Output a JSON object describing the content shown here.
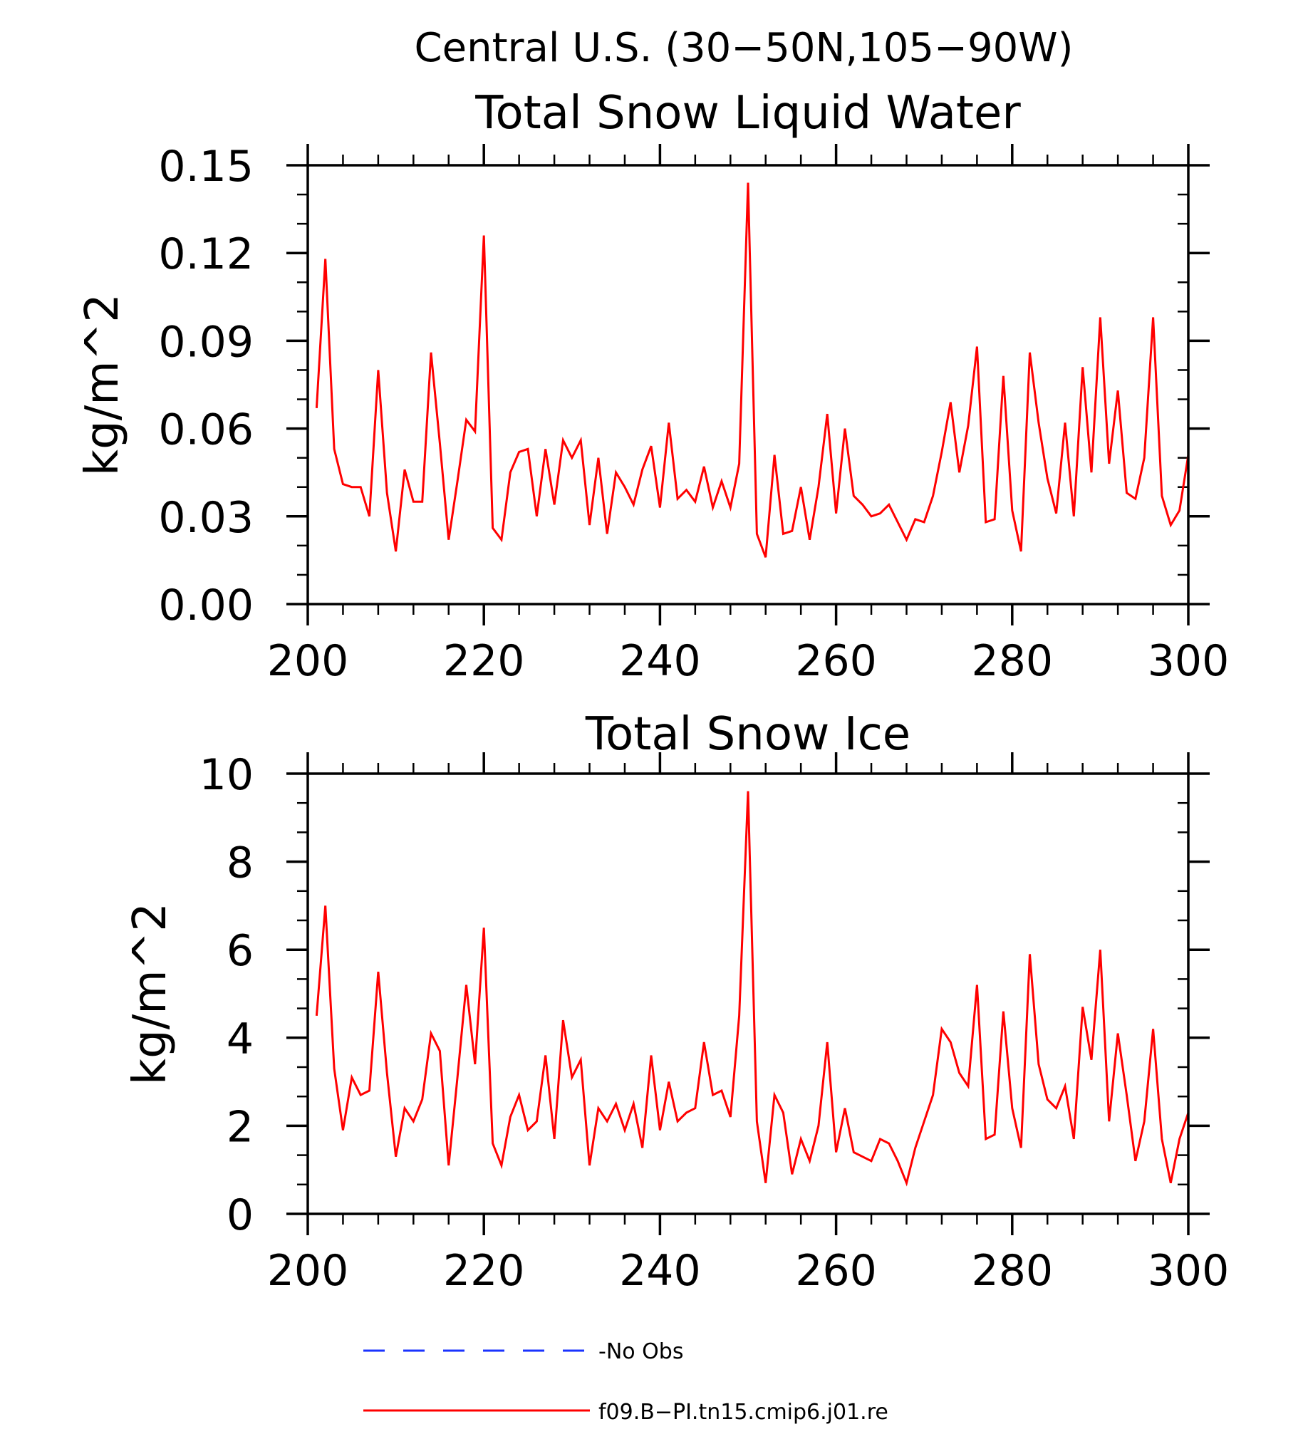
{
  "figure": {
    "title": "Central U.S. (30-50N,105-90W)",
    "colors": {
      "model": "#ff0000",
      "obs": "#1a33ff",
      "axes": "#000000"
    }
  },
  "legend": {
    "entries": [
      {
        "label": "No Obs",
        "style": "dashed",
        "color": "#1a33ff"
      },
      {
        "label": "f09.B-PI.tn15.cmip6.j01.re",
        "style": "solid",
        "color": "#ff0000"
      }
    ]
  },
  "chart_data": [
    {
      "type": "line",
      "title": "Total Snow Liquid Water",
      "xlabel": "",
      "ylabel": "kg/m^2",
      "xlim": [
        200,
        300
      ],
      "ylim": [
        0,
        0.15
      ],
      "xticks": [
        "200",
        "220",
        "240",
        "260",
        "280",
        "300"
      ],
      "yticks": [
        "0.00",
        "0.03",
        "0.06",
        "0.09",
        "0.12",
        "0.15"
      ],
      "grid": false,
      "x_start": 201,
      "series": [
        {
          "name": "f09.B-PI.tn15.cmip6.j01.re",
          "values": [
            0.067,
            0.118,
            0.053,
            0.041,
            0.04,
            0.04,
            0.03,
            0.08,
            0.038,
            0.018,
            0.046,
            0.035,
            0.035,
            0.086,
            0.055,
            0.022,
            0.042,
            0.063,
            0.059,
            0.126,
            0.026,
            0.022,
            0.045,
            0.052,
            0.053,
            0.03,
            0.053,
            0.034,
            0.056,
            0.05,
            0.056,
            0.027,
            0.05,
            0.024,
            0.045,
            0.04,
            0.034,
            0.046,
            0.054,
            0.033,
            0.062,
            0.036,
            0.039,
            0.035,
            0.047,
            0.033,
            0.042,
            0.033,
            0.048,
            0.144,
            0.024,
            0.016,
            0.051,
            0.024,
            0.025,
            0.04,
            0.022,
            0.04,
            0.065,
            0.031,
            0.06,
            0.037,
            0.034,
            0.03,
            0.031,
            0.034,
            0.028,
            0.022,
            0.029,
            0.028,
            0.037,
            0.052,
            0.069,
            0.045,
            0.061,
            0.088,
            0.028,
            0.029,
            0.078,
            0.032,
            0.018,
            0.086,
            0.062,
            0.043,
            0.031,
            0.062,
            0.03,
            0.081,
            0.045,
            0.098,
            0.048,
            0.073,
            0.038,
            0.036,
            0.05,
            0.098,
            0.037,
            0.027,
            0.032,
            0.051
          ]
        }
      ]
    },
    {
      "type": "line",
      "title": "Total Snow Ice",
      "xlabel": "",
      "ylabel": "kg/m^2",
      "xlim": [
        200,
        300
      ],
      "ylim": [
        0,
        10
      ],
      "xticks": [
        "200",
        "220",
        "240",
        "260",
        "280",
        "300"
      ],
      "yticks": [
        "0",
        "2",
        "4",
        "6",
        "8",
        "10"
      ],
      "grid": false,
      "x_start": 201,
      "series": [
        {
          "name": "f09.B-PI.tn15.cmip6.j01.re",
          "values": [
            4.5,
            7.0,
            3.3,
            1.9,
            3.1,
            2.7,
            2.8,
            5.5,
            3.2,
            1.3,
            2.4,
            2.1,
            2.6,
            4.1,
            3.7,
            1.1,
            3.1,
            5.2,
            3.4,
            6.5,
            1.6,
            1.1,
            2.2,
            2.7,
            1.9,
            2.1,
            3.6,
            1.7,
            4.4,
            3.1,
            3.5,
            1.1,
            2.4,
            2.1,
            2.5,
            1.9,
            2.5,
            1.5,
            3.6,
            1.9,
            3.0,
            2.1,
            2.3,
            2.4,
            3.9,
            2.7,
            2.8,
            2.2,
            4.5,
            9.6,
            2.1,
            0.7,
            2.7,
            2.3,
            0.9,
            1.7,
            1.2,
            2.0,
            3.9,
            1.4,
            2.4,
            1.4,
            1.3,
            1.2,
            1.7,
            1.6,
            1.2,
            0.7,
            1.5,
            2.1,
            2.7,
            4.2,
            3.9,
            3.2,
            2.9,
            5.2,
            1.7,
            1.8,
            4.6,
            2.4,
            1.5,
            5.9,
            3.4,
            2.6,
            2.4,
            2.9,
            1.7,
            4.7,
            3.5,
            6.0,
            2.1,
            4.1,
            2.7,
            1.2,
            2.1,
            4.2,
            1.7,
            0.7,
            1.7,
            2.3
          ]
        }
      ]
    }
  ]
}
